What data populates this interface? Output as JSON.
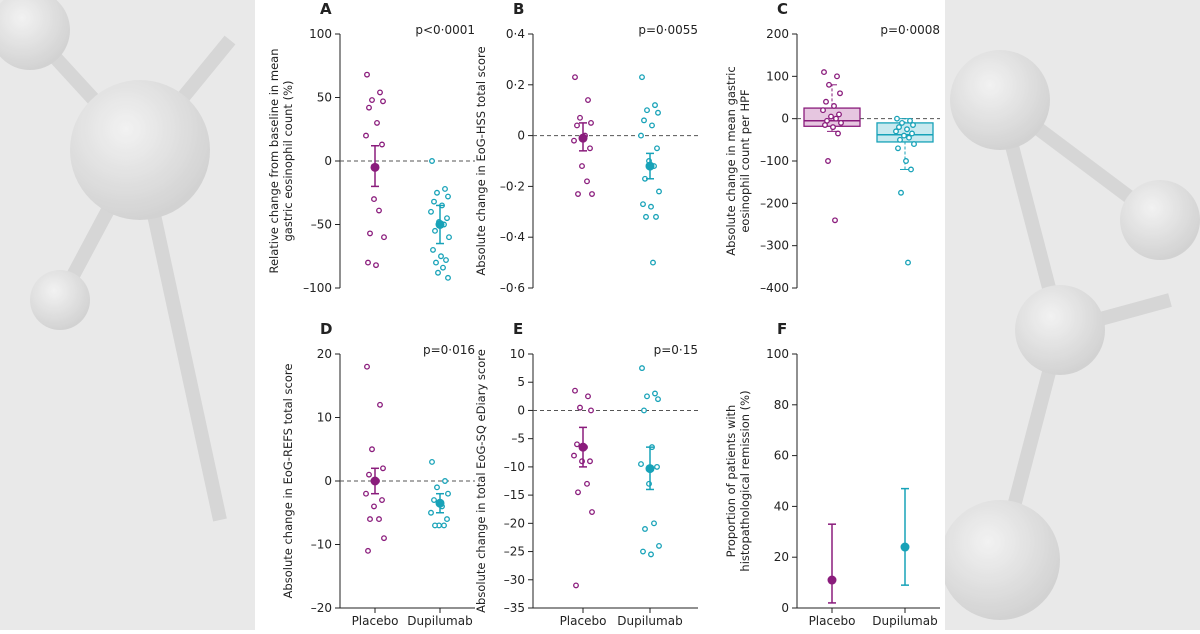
{
  "chart_data": [
    {
      "type": "strip",
      "letter": "A",
      "pvalue": "p<0·0001",
      "ylabel": [
        "Relative change from baseline in mean",
        "gastric eosinophil count (%)"
      ],
      "ylim": [
        -100,
        100
      ],
      "yticks": [
        {
          "value": -100,
          "label": "–100"
        },
        {
          "value": -50,
          "label": "–50"
        },
        0,
        50,
        100
      ],
      "zero_line": true,
      "series": [
        {
          "color": "#8a1c7c",
          "points": [
            68,
            54,
            48,
            47,
            42,
            30,
            20,
            13,
            -30,
            -39,
            -57,
            -60,
            -80,
            -82
          ],
          "mean": -5,
          "ci": [
            -20,
            12
          ]
        },
        {
          "color": "#17a2b8",
          "points": [
            0,
            -22,
            -25,
            -28,
            -32,
            -35,
            -40,
            -45,
            -48,
            -50,
            -55,
            -60,
            -70,
            -75,
            -78,
            -80,
            -84,
            -88,
            -92
          ],
          "mean": -50,
          "ci": [
            -65,
            -35
          ]
        }
      ]
    },
    {
      "type": "strip",
      "letter": "B",
      "pvalue": "p=0·0055",
      "ylabel": [
        "Absolute change in EoG-HSS total score"
      ],
      "ylim": [
        -0.6,
        0.4
      ],
      "yticks": [
        {
          "value": -0.6,
          "label": "–0·6"
        },
        {
          "value": -0.4,
          "label": "–0·4"
        },
        {
          "value": -0.2,
          "label": "–0·2"
        },
        0,
        {
          "value": 0.2,
          "label": "0·2"
        },
        {
          "value": 0.4,
          "label": "0·4"
        }
      ],
      "zero_line": true,
      "series": [
        {
          "color": "#8a1c7c",
          "points": [
            0.23,
            0.14,
            0.07,
            0.05,
            0.04,
            0.0,
            -0.02,
            -0.05,
            -0.12,
            -0.18,
            -0.23,
            -0.23
          ],
          "mean": -0.01,
          "ci": [
            -0.06,
            0.05
          ]
        },
        {
          "color": "#17a2b8",
          "points": [
            0.23,
            0.12,
            0.1,
            0.09,
            0.06,
            0.04,
            0.0,
            -0.05,
            -0.1,
            -0.12,
            -0.17,
            -0.22,
            -0.27,
            -0.28,
            -0.32,
            -0.32,
            -0.5
          ],
          "mean": -0.12,
          "ci": [
            -0.17,
            -0.07
          ]
        }
      ]
    },
    {
      "type": "box",
      "letter": "C",
      "pvalue": "p=0·0008",
      "ylabel": [
        "Absolute change in mean gastric",
        "eosinophil count per HPF"
      ],
      "ylim": [
        -400,
        200
      ],
      "yticks": [
        {
          "value": -400,
          "label": "–400"
        },
        {
          "value": -300,
          "label": "–300"
        },
        {
          "value": -200,
          "label": "–200"
        },
        {
          "value": -100,
          "label": "–100"
        },
        0,
        100,
        200
      ],
      "zero_line": true,
      "series": [
        {
          "color": "#8a1c7c",
          "fill": "#e6c6e0",
          "points": [
            110,
            100,
            80,
            60,
            40,
            30,
            20,
            10,
            5,
            0,
            -5,
            -10,
            -15,
            -20,
            -35,
            -100,
            -240
          ],
          "whisker_low": -30,
          "q1": -18,
          "median": -5,
          "q3": 25,
          "whisker_high": 80
        },
        {
          "color": "#17a2b8",
          "fill": "#c8e9ef",
          "points": [
            0,
            -5,
            -10,
            -15,
            -20,
            -25,
            -30,
            -35,
            -40,
            -45,
            -50,
            -60,
            -70,
            -100,
            -120,
            -175,
            -340
          ],
          "whisker_low": -120,
          "q1": -55,
          "median": -38,
          "q3": -10,
          "whisker_high": 0
        }
      ]
    },
    {
      "type": "strip",
      "letter": "D",
      "pvalue": "p=0·016",
      "ylabel": [
        "Absolute change in EoG-REFS total score"
      ],
      "categories": [
        "Placebo",
        "Dupilumab"
      ],
      "ylim": [
        -20,
        20
      ],
      "yticks": [
        {
          "value": -20,
          "label": "–20"
        },
        {
          "value": -10,
          "label": "–10"
        },
        0,
        10,
        20
      ],
      "zero_line": true,
      "series": [
        {
          "color": "#8a1c7c",
          "points": [
            18,
            12,
            5,
            2,
            1,
            0,
            -2,
            -3,
            -4,
            -6,
            -6,
            -9,
            -11
          ],
          "mean": 0,
          "ci": [
            -2,
            2
          ]
        },
        {
          "color": "#17a2b8",
          "points": [
            3,
            0,
            -1,
            -2,
            -3,
            -4,
            -5,
            -6,
            -7,
            -7,
            -7
          ],
          "mean": -3.5,
          "ci": [
            -5,
            -2
          ]
        }
      ]
    },
    {
      "type": "strip",
      "letter": "E",
      "pvalue": "p=0·15",
      "ylabel": [
        "Absolute change in total EoG-SQ eDiary score"
      ],
      "categories": [
        "Placebo",
        "Dupilumab"
      ],
      "ylim": [
        -35,
        10
      ],
      "yticks": [
        {
          "value": -35,
          "label": "–35"
        },
        {
          "value": -30,
          "label": "–30"
        },
        {
          "value": -25,
          "label": "–25"
        },
        {
          "value": -20,
          "label": "–20"
        },
        {
          "value": -15,
          "label": "–15"
        },
        {
          "value": -10,
          "label": "–10"
        },
        {
          "value": -5,
          "label": "–5"
        },
        0,
        5,
        10
      ],
      "zero_line": true,
      "series": [
        {
          "color": "#8a1c7c",
          "points": [
            3.5,
            2.5,
            0.5,
            0,
            -6,
            -6.5,
            -8,
            -9,
            -9,
            -13,
            -14.5,
            -18,
            -31
          ],
          "mean": -6.5,
          "ci": [
            -10,
            -3
          ]
        },
        {
          "color": "#17a2b8",
          "points": [
            7.5,
            3,
            2.5,
            2,
            0,
            -6.5,
            -9.5,
            -10,
            -13,
            -20,
            -21,
            -24,
            -25,
            -25.5
          ],
          "mean": -10.3,
          "ci": [
            -14,
            -6.5
          ]
        }
      ]
    },
    {
      "type": "point",
      "letter": "F",
      "ylabel": [
        "Proportion of patients with",
        "histopathological remission (%)"
      ],
      "categories": [
        "Placebo",
        "Dupilumab"
      ],
      "ylim": [
        0,
        100
      ],
      "yticks": [
        0,
        20,
        40,
        60,
        80,
        100
      ],
      "zero_line": false,
      "series": [
        {
          "color": "#8a1c7c",
          "mean": 11,
          "ci": [
            2,
            33
          ]
        },
        {
          "color": "#17a2b8",
          "mean": 24,
          "ci": [
            9,
            47
          ]
        }
      ]
    }
  ]
}
